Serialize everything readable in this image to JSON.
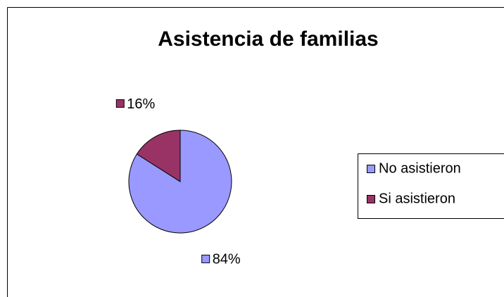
{
  "chart_data": {
    "type": "pie",
    "title": "Asistencia de familias",
    "categories": [
      "No asistieron",
      "Si asistieron"
    ],
    "values": [
      84,
      16
    ],
    "value_labels": [
      "84%",
      "16%"
    ],
    "colors": [
      "#9999ff",
      "#993366"
    ],
    "legend": "right"
  }
}
